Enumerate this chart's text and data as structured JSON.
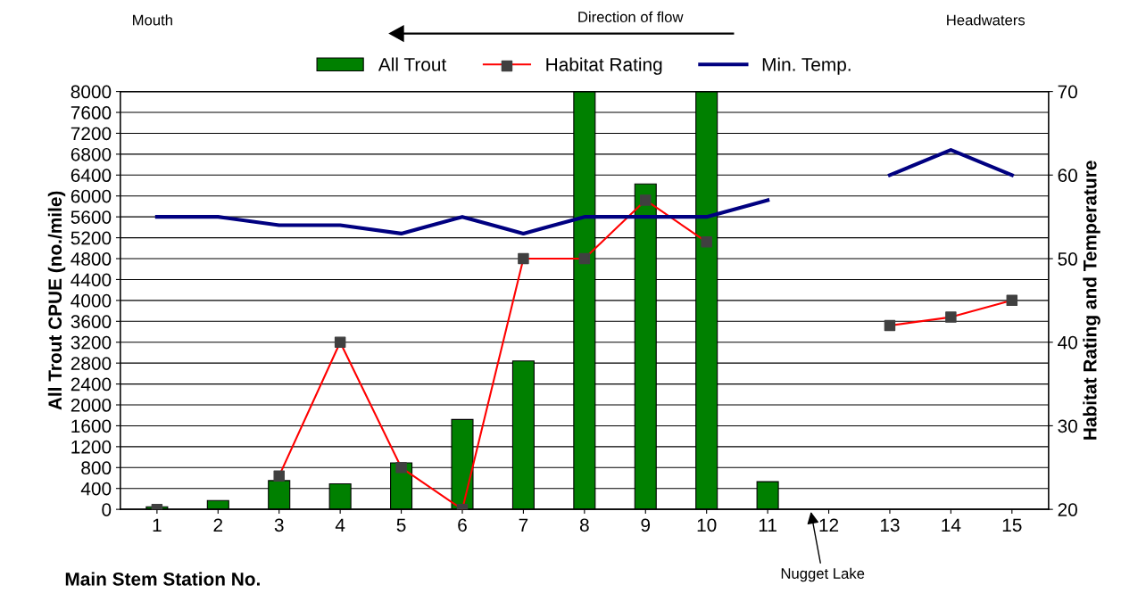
{
  "chart_data": {
    "type": "bar",
    "categories": [
      "1",
      "2",
      "3",
      "4",
      "5",
      "6",
      "7",
      "8",
      "9",
      "10",
      "11",
      "12",
      "13",
      "14",
      "15"
    ],
    "xlabel": "Main Stem Station No.",
    "ylabel": "All Trout CPUE (no./mile)",
    "y2label": "Habitat Rating and Temperature",
    "ylim": [
      0,
      8000
    ],
    "yticks": [
      0,
      400,
      800,
      1200,
      1600,
      2000,
      2400,
      2800,
      3200,
      3600,
      4000,
      4400,
      4800,
      5200,
      5600,
      6000,
      6400,
      6800,
      7200,
      7600,
      8000
    ],
    "y2lim": [
      20,
      70
    ],
    "y2ticks": [
      20,
      30,
      40,
      50,
      60,
      70
    ],
    "grid": "y",
    "legend": "top",
    "series": [
      {
        "name": "All Trout",
        "color": "#008000",
        "values": [
          50,
          170,
          550,
          490,
          890,
          1720,
          2840,
          8000,
          6230,
          8000,
          530,
          null,
          null,
          null,
          null
        ]
      },
      {
        "name": "Habitat Rating",
        "type": "line",
        "axis": "y2",
        "color": "#ff0000",
        "marker": "square",
        "colors": [
          "#404040",
          "#404040",
          "#404040",
          "#404040",
          "#404040",
          "#404040",
          "#404040",
          "#404040",
          "#404040",
          "#404040",
          "#404040",
          "#404040",
          "#404040",
          "#404040",
          "#404040"
        ],
        "values": [
          20,
          null,
          24,
          40,
          25,
          20,
          50,
          50,
          57,
          52,
          null,
          null,
          42,
          43,
          45
        ]
      },
      {
        "name": "Min. Temp.",
        "type": "line",
        "axis": "y2",
        "color": "#000080",
        "marker": "none",
        "values": [
          55,
          55,
          54,
          54,
          53,
          55,
          53,
          55,
          55,
          55,
          57,
          null,
          60,
          63,
          60
        ]
      }
    ],
    "annotations": [
      "Mouth",
      "Direction of flow",
      "Headwaters",
      "Nugget Lake"
    ]
  }
}
